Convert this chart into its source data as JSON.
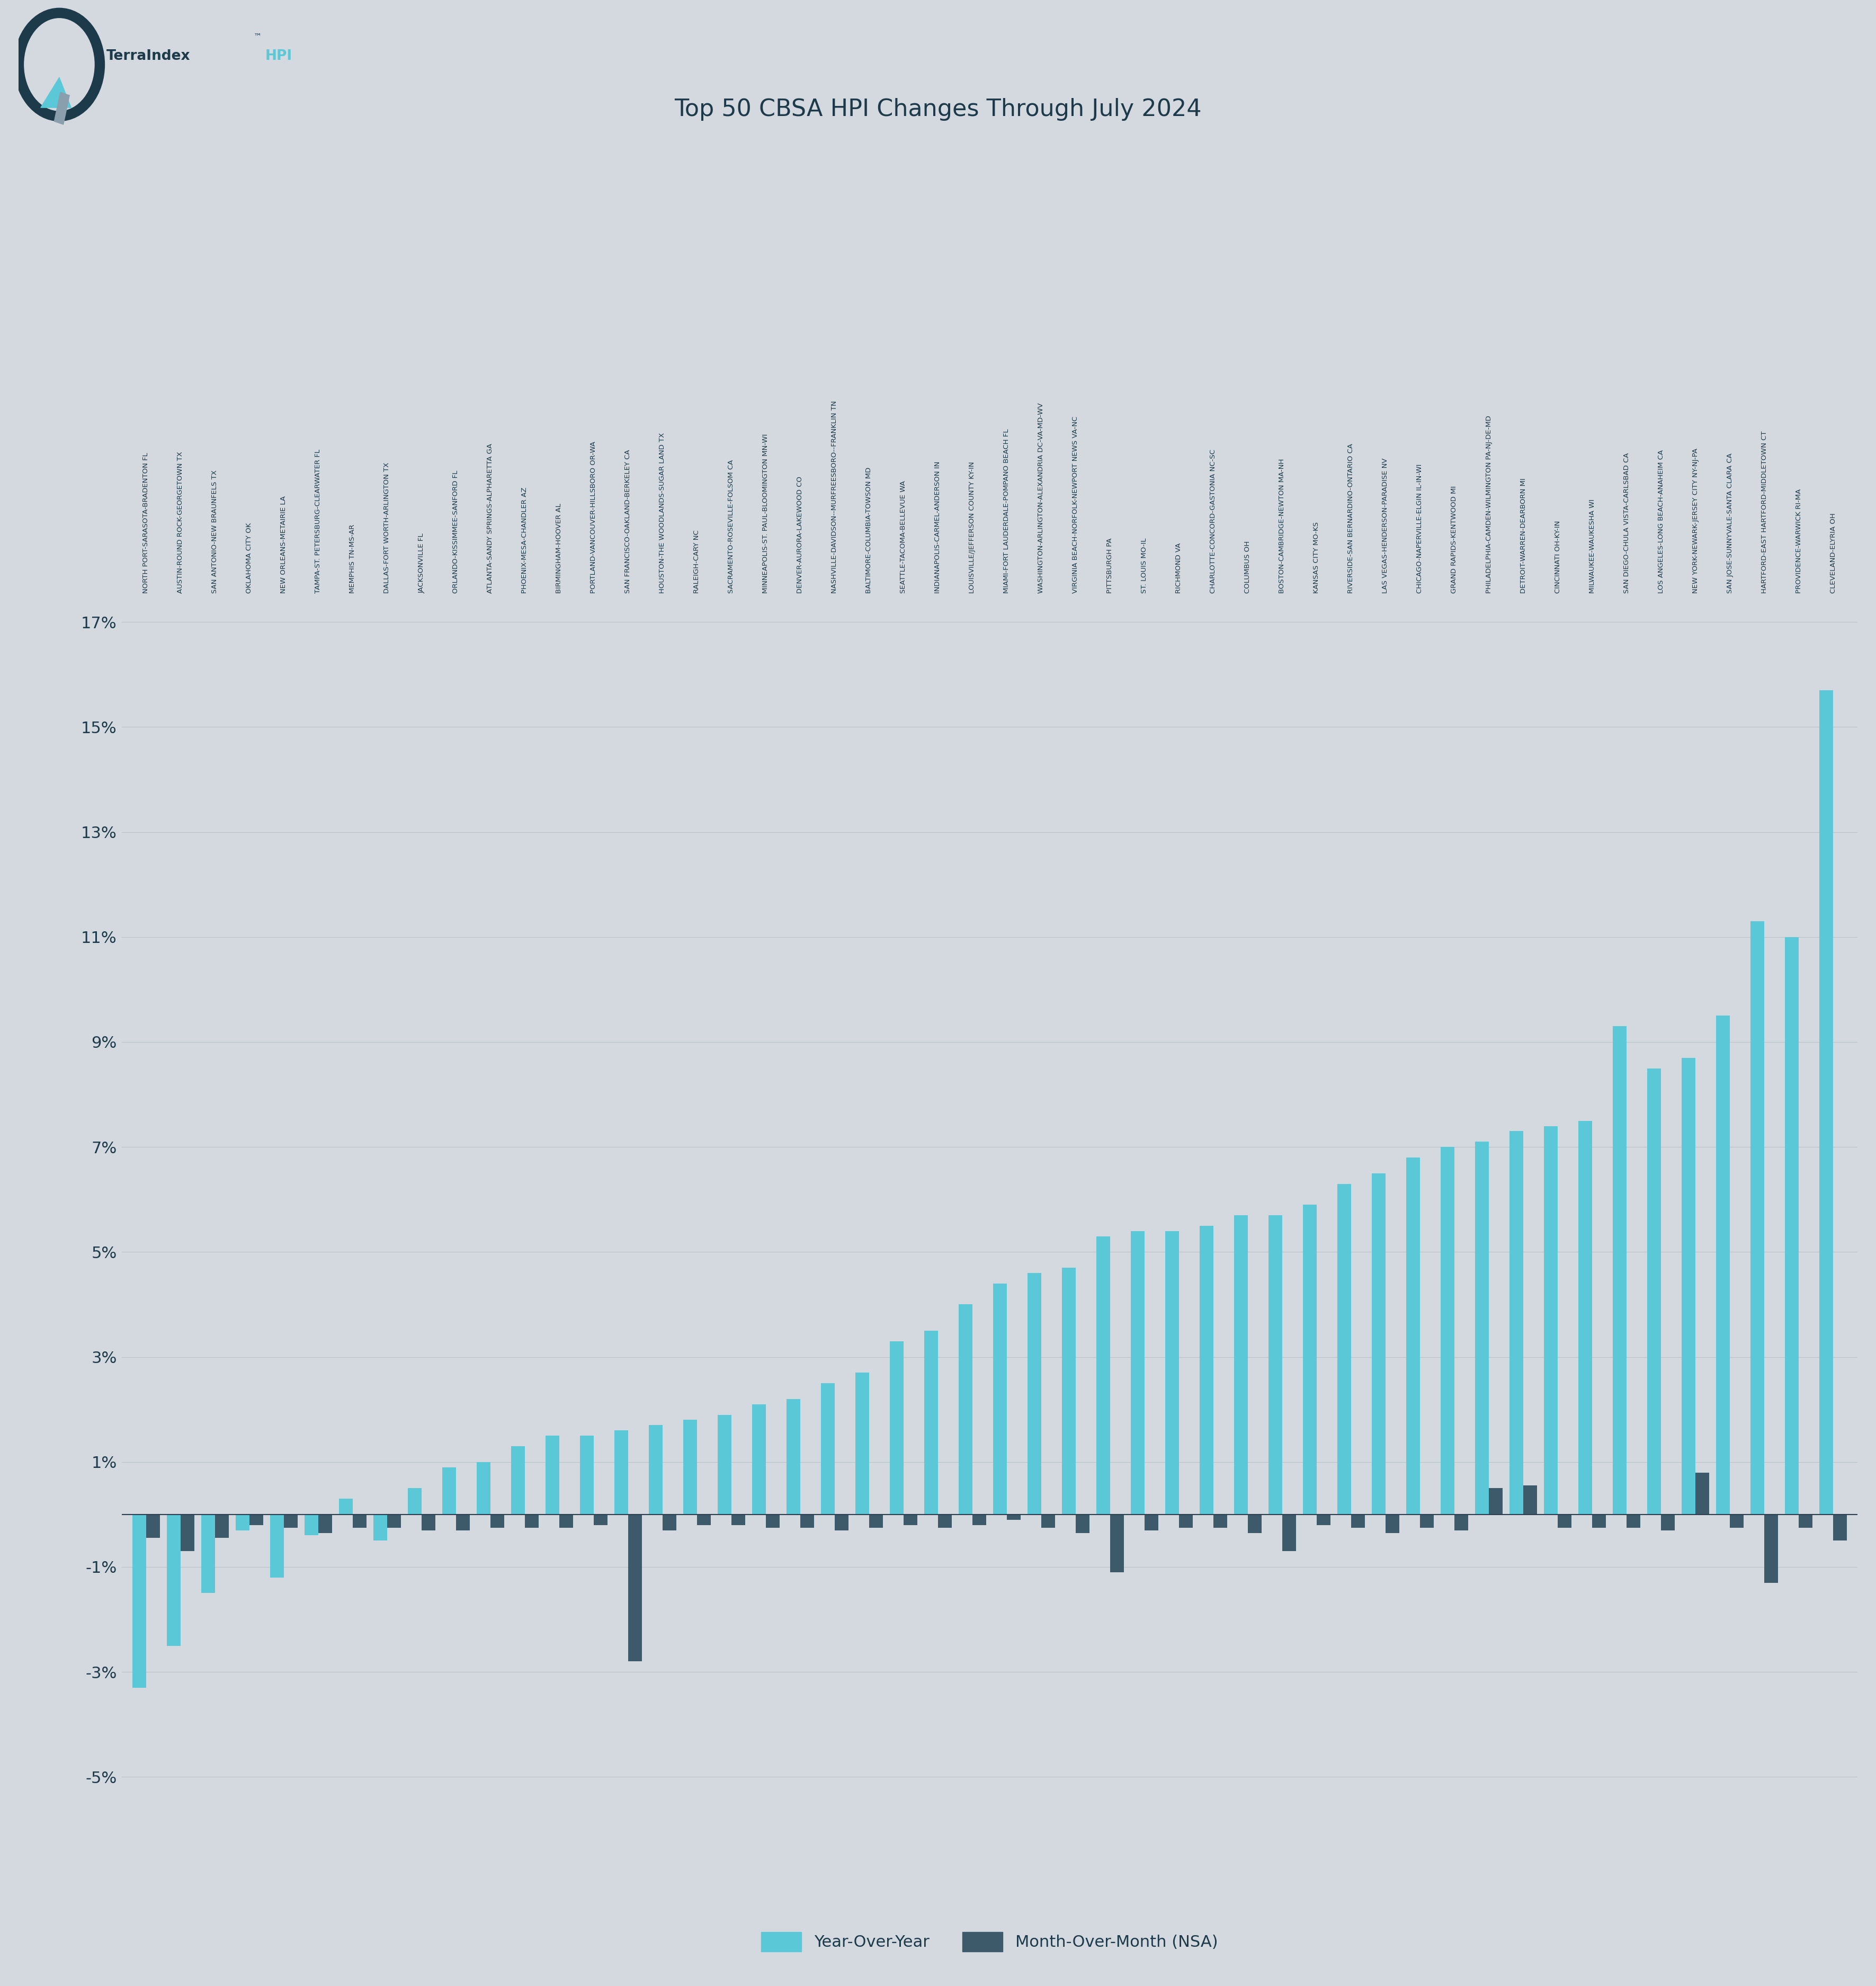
{
  "title": "Top 50 CBSA HPI Changes Through July 2024",
  "background_color": "#d4d9df",
  "plot_bg_color": "#d4d9df",
  "bar_color_yoy": "#5bc8d8",
  "bar_color_mom": "#3d5a6b",
  "title_color": "#1c3a4a",
  "axis_color": "#1c3a4a",
  "grid_color": "#b8c4ca",
  "zero_line_color": "#2a4050",
  "ylim": [
    -5.2,
    17.5
  ],
  "yticks": [
    -5,
    -3,
    -1,
    1,
    3,
    5,
    7,
    9,
    11,
    13,
    15,
    17
  ],
  "ytick_labels": [
    "-5%",
    "-3%",
    "-1%",
    "1%",
    "3%",
    "5%",
    "7%",
    "9%",
    "11%",
    "13%",
    "15%",
    "17%"
  ],
  "categories": [
    "NORTH PORT-SARASOTA-BRADENTON FL",
    "AUSTIN-ROUND ROCK-GEORGETOWN TX",
    "SAN ANTONIO-NEW BRAUNFELS TX",
    "OKLAHOMA CITY OK",
    "NEW ORLEANS-METAIRIE LA",
    "TAMPA-ST. PETERSBURG-CLEARWATER FL",
    "MEMPHIS TN-MS-AR",
    "DALLAS-FORT WORTH-ARLINGTON TX",
    "JACKSONVILLE FL",
    "ORLANDO-KISSIMMEE-SANFORD FL",
    "ATLANTA-SANDY SPRINGS-ALPHARETTA GA",
    "PHOENIX-MESA-CHANDLER AZ",
    "BIRMINGHAM-HOOVER AL",
    "PORTLAND-VANCOUVER-HILLSBORO OR-WA",
    "SAN FRANCISCO-OAKLAND-BERKELEY CA",
    "HOUSTON-THE WOODLANDS-SUGAR LAND TX",
    "RALEIGH-CARY NC",
    "SACRAMENTO-ROSEVILLE-FOLSOM CA",
    "MINNEAPOLIS-ST. PAUL-BLOOMINGTON MN-WI",
    "DENVER-AURORA-LAKEWOOD CO",
    "NASHVILLE-DAVIDSON--MURFREESBORO--FRANKLIN TN",
    "BALTIMORE-COLUMBIA-TOWSON MD",
    "SEATTLE-TACOMA-BELLEVUE WA",
    "INDIANAPOLIS-CARMEL-ANDERSON IN",
    "LOUISVILLE/JEFFERSON COUNTY KY-IN",
    "MIAMI-FORT LAUDERDALE-POMPANO BEACH FL",
    "WASHINGTON-ARLINGTON-ALEXANDRIA DC-VA-MD-WV",
    "VIRGINIA BEACH-NORFOLK-NEWPORT NEWS VA-NC",
    "PITTSBURGH PA",
    "ST. LOUIS MO-IL",
    "RICHMOND VA",
    "CHARLOTTE-CONCORD-GASTONIA NC-SC",
    "COLUMBUS OH",
    "BOSTON-CAMBRIDGE-NEWTON MA-NH",
    "KANSAS CITY MO-KS",
    "RIVERSIDE-SAN BERNARDINO-ONTARIO CA",
    "LAS VEGAS-HENDERSON-PARADISE NV",
    "CHICAGO-NAPERVILLE-ELGIN IL-IN-WI",
    "GRAND RAPIDS-KENTWOOD MI",
    "PHILADELPHIA-CAMDEN-WILMINGTON PA-NJ-DE-MD",
    "DETROIT-WARREN-DEARBORN MI",
    "CINCINNATI OH-KY-IN",
    "MILWAUKEE-WAUKESHA WI",
    "SAN DIEGO-CHULA VISTA-CARLSBAD CA",
    "LOS ANGELES-LONG BEACH-ANAHEIM CA",
    "NEW YORK-NEWARK-JERSEY CITY NY-NJ-PA",
    "SAN JOSE-SUNNYVALE-SANTA CLARA CA",
    "HARTFORD-EAST HARTFORD-MIDDLETOWN CT",
    "PROVIDENCE-WARWICK RI-MA",
    "CLEVELAND-ELYRIA OH"
  ],
  "yoy_values": [
    -3.3,
    -2.5,
    -1.5,
    -0.3,
    -1.2,
    -0.4,
    0.3,
    -0.5,
    0.5,
    0.9,
    1.0,
    1.3,
    1.5,
    1.5,
    1.6,
    1.7,
    1.8,
    1.9,
    2.1,
    2.2,
    2.5,
    2.7,
    3.3,
    3.5,
    4.0,
    4.4,
    4.6,
    4.7,
    5.3,
    5.4,
    5.4,
    5.5,
    5.7,
    5.7,
    5.9,
    6.3,
    6.5,
    6.8,
    7.0,
    7.1,
    7.3,
    7.4,
    7.5,
    9.3,
    8.5,
    8.7,
    9.5,
    11.3,
    11.0,
    15.7
  ],
  "mom_values": [
    -0.45,
    -0.7,
    -0.45,
    -0.2,
    -0.25,
    -0.35,
    -0.25,
    -0.25,
    -0.3,
    -0.3,
    -0.25,
    -0.25,
    -0.25,
    -0.2,
    -2.8,
    -0.3,
    -0.2,
    -0.2,
    -0.25,
    -0.25,
    -0.3,
    -0.25,
    -0.2,
    -0.25,
    -0.2,
    -0.1,
    -0.25,
    -0.35,
    -1.1,
    -0.3,
    -0.25,
    -0.25,
    -0.35,
    -0.7,
    -0.2,
    -0.25,
    -0.35,
    -0.25,
    -0.3,
    0.5,
    0.55,
    -0.25,
    -0.25,
    -0.25,
    -0.3,
    0.8,
    -0.25,
    -1.3,
    -0.25,
    -0.5
  ],
  "legend_labels": [
    "Year-Over-Year",
    "Month-Over-Month (NSA)"
  ]
}
